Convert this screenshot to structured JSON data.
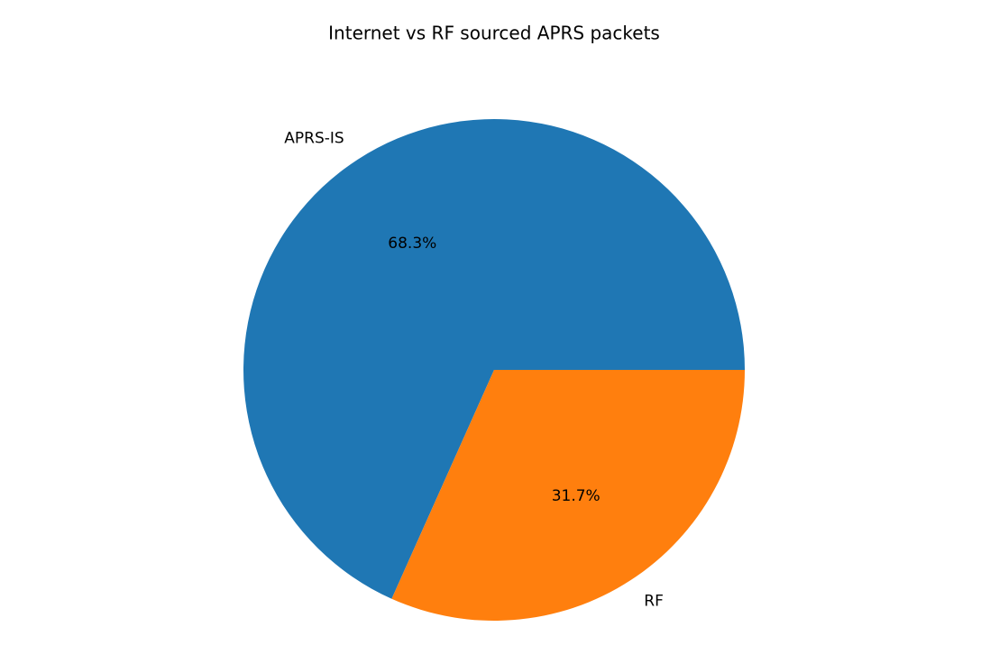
{
  "chart_data": {
    "type": "pie",
    "title": "Internet vs RF sourced APRS packets",
    "categories": [
      "APRS-IS",
      "RF"
    ],
    "values": [
      68.3,
      31.7
    ],
    "value_labels": [
      "68.3%",
      "31.7%"
    ],
    "colors": [
      "#1f77b4",
      "#ff7f0e"
    ],
    "start_angle": 0
  }
}
